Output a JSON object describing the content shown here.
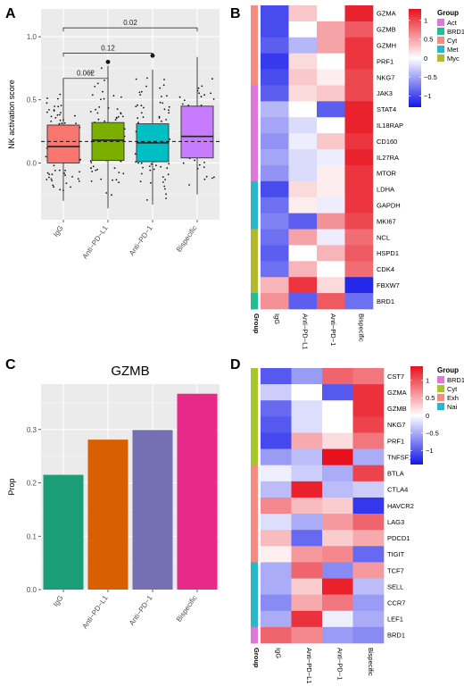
{
  "panels": {
    "A": "A",
    "B": "B",
    "C": "C",
    "D": "D"
  },
  "chart_data": [
    {
      "panel": "A",
      "type": "box",
      "ylabel": "NK activation score",
      "categories": [
        "IgG",
        "Anti−PD−L1",
        "Anti−PD−1",
        "Bispecific"
      ],
      "colors": [
        "#f8766d",
        "#7cae00",
        "#00bfc4",
        "#c77cff"
      ],
      "ylim": [
        -0.45,
        1.22
      ],
      "yticks": [
        "1.0",
        "0.5",
        "0.0"
      ],
      "ytick_values": [
        1.0,
        0.5,
        0.0
      ],
      "reference_line": 0.17,
      "grid": true,
      "boxes": [
        {
          "q1": 0.0,
          "median": 0.13,
          "q3": 0.3,
          "whisker_low": -0.3,
          "whisker_high": 0.66,
          "outliers": []
        },
        {
          "q1": 0.02,
          "median": 0.18,
          "q3": 0.32,
          "whisker_low": -0.36,
          "whisker_high": 0.77,
          "outliers": [
            0.8
          ]
        },
        {
          "q1": 0.01,
          "median": 0.16,
          "q3": 0.31,
          "whisker_low": -0.33,
          "whisker_high": 0.74,
          "outliers": [
            0.85
          ]
        },
        {
          "q1": 0.04,
          "median": 0.21,
          "q3": 0.45,
          "whisker_low": -0.25,
          "whisker_high": 0.84,
          "outliers": []
        }
      ],
      "annotations": [
        {
          "label": "0.062",
          "from": 0,
          "to": 1,
          "y": 0.67
        },
        {
          "label": "0.12",
          "from": 0,
          "to": 2,
          "y": 0.87
        },
        {
          "label": "0.02",
          "from": 0,
          "to": 3,
          "y": 1.07
        }
      ]
    },
    {
      "panel": "B",
      "type": "heatmap",
      "rows": [
        "GZMA",
        "GZMB",
        "GZMH",
        "PRF1",
        "NKG7",
        "JAK3",
        "STAT4",
        "IL18RAP",
        "CD160",
        "IL27RA",
        "MTOR",
        "LDHA",
        "GAPDH",
        "MKI67",
        "NCL",
        "HSPD1",
        "CDK4",
        "FBXW7",
        "BRD1"
      ],
      "columns": [
        "IgG",
        "Anti−PD−L1",
        "Anti−PD−1",
        "Bispecific"
      ],
      "values": [
        [
          -1.0,
          0.3,
          0.0,
          1.2
        ],
        [
          -1.0,
          0.0,
          0.5,
          0.9
        ],
        [
          -0.9,
          -0.4,
          0.5,
          1.1
        ],
        [
          -1.1,
          0.2,
          0.0,
          1.1
        ],
        [
          -1.0,
          0.3,
          0.1,
          1.0
        ],
        [
          -0.9,
          0.2,
          0.3,
          1.0
        ],
        [
          -0.4,
          0.0,
          -0.9,
          1.2
        ],
        [
          -0.5,
          -0.2,
          0.0,
          1.2
        ],
        [
          -0.6,
          -0.1,
          0.3,
          1.1
        ],
        [
          -0.5,
          -0.2,
          -0.1,
          1.2
        ],
        [
          -0.6,
          -0.2,
          0.1,
          1.1
        ],
        [
          -1.0,
          0.2,
          0.1,
          1.1
        ],
        [
          -0.8,
          0.1,
          -0.1,
          1.1
        ],
        [
          -0.7,
          -0.9,
          0.6,
          1.0
        ],
        [
          -0.8,
          0.5,
          -0.1,
          0.8
        ],
        [
          -0.9,
          0.0,
          0.4,
          0.9
        ],
        [
          -0.8,
          0.4,
          0.0,
          0.8
        ],
        [
          0.4,
          1.1,
          0.2,
          -1.2
        ],
        [
          0.6,
          -0.9,
          0.9,
          -0.8
        ]
      ],
      "group_annotation": [
        "Cyt",
        "Cyt",
        "Cyt",
        "Cyt",
        "Cyt",
        "Act",
        "Act",
        "Act",
        "Act",
        "Act",
        "Act",
        "Met",
        "Met",
        "Met",
        "Myc",
        "Myc",
        "Myc",
        "Myc",
        "BRD1"
      ],
      "group_label": "Group",
      "legend": {
        "title": "Group",
        "entries": [
          {
            "name": "Act",
            "color": "#e078dc"
          },
          {
            "name": "BRD1",
            "color": "#1fbf8f"
          },
          {
            "name": "Cyt",
            "color": "#f48a80"
          },
          {
            "name": "Met",
            "color": "#29b8c8"
          },
          {
            "name": "Myc",
            "color": "#b5b72c"
          }
        ]
      },
      "colorbar": {
        "labels": [
          "1",
          "0.5",
          "0",
          "−0.5",
          "−1"
        ],
        "values": [
          1,
          0.5,
          0,
          -0.5,
          -1
        ],
        "range": [
          -1.3,
          1.3
        ]
      }
    },
    {
      "panel": "C",
      "type": "bar",
      "title": "GZMB",
      "ylabel": "Prop",
      "categories": [
        "IgG",
        "Anti−PD−L1",
        "Anti−PD−1",
        "Bispecific"
      ],
      "values": [
        0.215,
        0.281,
        0.299,
        0.367
      ],
      "colors": [
        "#1b9e77",
        "#d95f02",
        "#7570b3",
        "#e7298a"
      ],
      "ylim": [
        0,
        0.385
      ],
      "yticks": [
        "0.0",
        "0.1",
        "0.2",
        "0.3"
      ],
      "ytick_values": [
        0.0,
        0.1,
        0.2,
        0.3
      ],
      "grid": true
    },
    {
      "panel": "D",
      "type": "heatmap",
      "rows": [
        "CST7",
        "GZMA",
        "GZMB",
        "NKG7",
        "PRF1",
        "TNFSF10",
        "BTLA",
        "CTLA4",
        "HAVCR2",
        "LAG3",
        "PDCD1",
        "TIGIT",
        "TCF7",
        "SELL",
        "CCR7",
        "LEF1",
        "BRD1"
      ],
      "columns": [
        "IgG",
        "Anti−PD−L1",
        "Anti−PD−1",
        "Bispecific"
      ],
      "values": [
        [
          -1.0,
          -0.6,
          0.9,
          0.8
        ],
        [
          -0.3,
          0.0,
          -1.0,
          1.2
        ],
        [
          -0.9,
          -0.2,
          0.0,
          1.2
        ],
        [
          -1.0,
          -0.2,
          0.0,
          1.1
        ],
        [
          -1.1,
          0.5,
          0.2,
          0.8
        ],
        [
          -0.6,
          -0.4,
          1.4,
          -0.5
        ],
        [
          -0.1,
          -0.3,
          -0.5,
          1.1
        ],
        [
          -0.4,
          1.3,
          -0.4,
          -0.3
        ],
        [
          0.7,
          0.4,
          0.3,
          -1.2
        ],
        [
          -0.2,
          -0.5,
          0.6,
          0.9
        ],
        [
          0.4,
          -0.9,
          0.3,
          0.5
        ],
        [
          0.1,
          0.6,
          0.7,
          -0.9
        ],
        [
          -0.5,
          0.9,
          -0.7,
          0.6
        ],
        [
          -0.5,
          0.3,
          1.3,
          -0.4
        ],
        [
          -0.7,
          0.5,
          0.8,
          -0.6
        ],
        [
          -0.5,
          1.2,
          -0.1,
          -0.5
        ],
        [
          0.9,
          0.7,
          -0.6,
          -0.7
        ]
      ],
      "group_annotation": [
        "Cyt",
        "Cyt",
        "Cyt",
        "Cyt",
        "Cyt",
        "Cyt",
        "Exh",
        "Exh",
        "Exh",
        "Exh",
        "Exh",
        "Exh",
        "Nai",
        "Nai",
        "Nai",
        "Nai",
        "BRD1"
      ],
      "group_label": "Group",
      "legend": {
        "title": "Group",
        "entries": [
          {
            "name": "BRD1",
            "color": "#e078dc"
          },
          {
            "name": "Cyt",
            "color": "#a8c62a"
          },
          {
            "name": "Exh",
            "color": "#f48a80"
          },
          {
            "name": "Nai",
            "color": "#29b8c8"
          }
        ]
      },
      "colorbar": {
        "labels": [
          "1",
          "0.5",
          "0",
          "−0.5",
          "−1"
        ],
        "values": [
          1,
          0.5,
          0,
          -0.5,
          -1
        ],
        "range": [
          -1.4,
          1.4
        ]
      }
    }
  ]
}
